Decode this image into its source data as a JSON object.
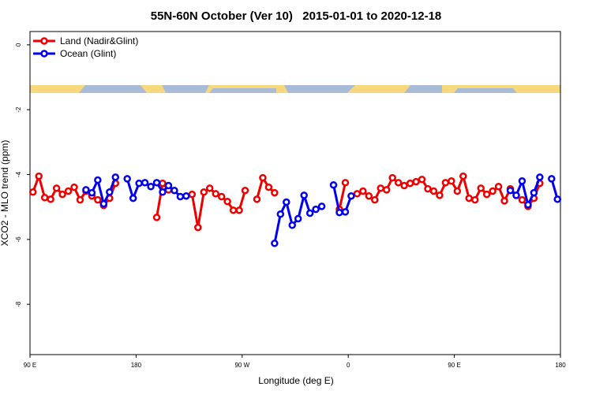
{
  "chart_data": {
    "type": "line",
    "title": "55N-60N October (Ver 10)   2015-01-01 to 2020-12-18",
    "x_label": "Longitude (deg E)",
    "y_label": "XCO2 - MLO trend (ppm)",
    "xlim": [
      90,
      540
    ],
    "ylim": [
      -9.55,
      0.41
    ],
    "xticks": [
      {
        "value": 90,
        "label": "90 E"
      },
      {
        "value": 180,
        "label": "180"
      },
      {
        "value": 270,
        "label": "90 W"
      },
      {
        "value": 360,
        "label": "0"
      },
      {
        "value": 450,
        "label": "90 E"
      },
      {
        "value": 540,
        "label": "180"
      }
    ],
    "yticks": [
      0,
      -2,
      -4,
      -6,
      -8
    ],
    "legend": "top-left",
    "x": [
      92.5,
      97.5,
      102.5,
      107.5,
      112.5,
      117.5,
      122.5,
      127.5,
      132.5,
      137.5,
      142.5,
      147.5,
      152.5,
      157.5,
      162.5,
      167.5,
      172.5,
      177.5,
      182.5,
      187.5,
      192.5,
      197.5,
      202.5,
      207.5,
      212.5,
      217.5,
      222.5,
      227.5,
      232.5,
      237.5,
      242.5,
      247.5,
      252.5,
      257.5,
      262.5,
      267.5,
      272.5,
      277.5,
      282.5,
      287.5,
      292.5,
      297.5,
      302.5,
      307.5,
      312.5,
      317.5,
      322.5,
      327.5,
      332.5,
      337.5,
      342.5,
      347.5,
      352.5,
      357.5,
      362.5,
      367.5,
      372.5,
      377.5,
      382.5,
      387.5,
      392.5,
      397.5,
      402.5,
      407.5,
      412.5,
      417.5,
      422.5,
      427.5,
      432.5,
      437.5,
      442.5,
      447.5,
      452.5,
      457.5,
      462.5,
      467.5,
      472.5,
      477.5,
      482.5,
      487.5,
      492.5,
      497.5,
      502.5,
      507.5,
      512.5,
      517.5,
      522.5,
      527.5,
      532.5,
      537.5
    ],
    "series": [
      {
        "name": "Land (Nadir&Glint)",
        "color": "#ee0000",
        "values": [
          -4.54,
          -4.05,
          -4.71,
          -4.76,
          -4.42,
          -4.61,
          -4.51,
          -4.39,
          -4.78,
          -4.51,
          -4.66,
          -4.78,
          -4.95,
          -4.73,
          -4.27,
          null,
          null,
          null,
          null,
          null,
          null,
          -5.32,
          -4.27,
          -4.47,
          null,
          null,
          null,
          -4.61,
          -5.63,
          -4.54,
          -4.42,
          -4.59,
          -4.68,
          -4.83,
          -5.1,
          -5.1,
          -4.49,
          null,
          -4.76,
          -4.1,
          -4.39,
          -4.56,
          null,
          null,
          null,
          null,
          null,
          null,
          null,
          null,
          null,
          null,
          -5.07,
          -4.25,
          null,
          -4.59,
          -4.51,
          -4.66,
          -4.78,
          -4.42,
          -4.47,
          -4.1,
          -4.25,
          -4.34,
          -4.27,
          -4.22,
          -4.15,
          -4.44,
          -4.51,
          -4.64,
          -4.25,
          -4.2,
          -4.51,
          -4.05,
          -4.73,
          -4.78,
          -4.42,
          -4.61,
          -4.51,
          -4.37,
          -4.81,
          -4.44,
          -4.64,
          -4.78,
          -4.98,
          -4.73,
          -4.27,
          null,
          null,
          null
        ]
      },
      {
        "name": "Ocean (Glint)",
        "color": "#0000ee",
        "values": [
          null,
          null,
          null,
          null,
          null,
          null,
          null,
          null,
          null,
          -4.47,
          -4.56,
          -4.17,
          -4.9,
          -4.54,
          -4.08,
          null,
          -4.13,
          -4.73,
          -4.27,
          -4.25,
          -4.37,
          -4.25,
          -4.54,
          -4.34,
          -4.49,
          -4.68,
          -4.66,
          null,
          null,
          null,
          null,
          null,
          null,
          null,
          null,
          null,
          null,
          null,
          null,
          null,
          null,
          -6.12,
          -5.22,
          -4.85,
          -5.56,
          -5.36,
          -4.64,
          -5.19,
          -5.07,
          -4.98,
          null,
          -4.32,
          -5.17,
          -5.15,
          -4.66,
          null,
          null,
          null,
          null,
          null,
          null,
          null,
          null,
          null,
          null,
          null,
          null,
          null,
          null,
          null,
          null,
          null,
          null,
          null,
          null,
          null,
          null,
          null,
          null,
          null,
          null,
          -4.49,
          -4.64,
          -4.2,
          -4.93,
          -4.56,
          -4.08,
          null,
          -4.13,
          -4.76
        ]
      }
    ]
  }
}
